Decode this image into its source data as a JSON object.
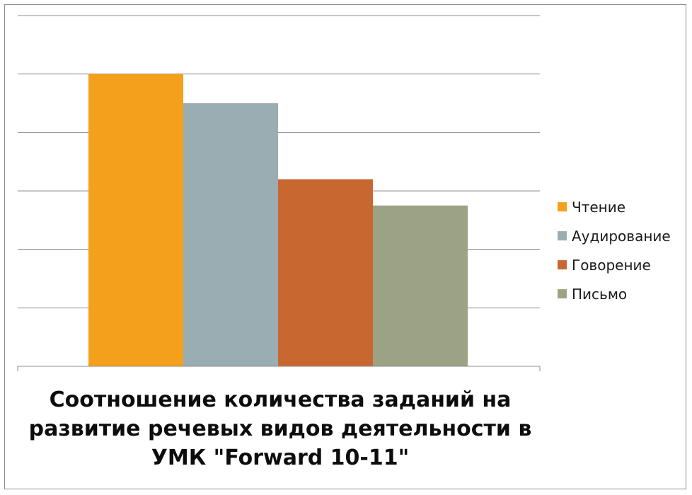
{
  "chart_data": {
    "type": "bar",
    "title_lines": [
      "Соотношение количества заданий на",
      "развитие речевых видов деятельности в",
      "УМК \"Forward 10-11\""
    ],
    "series": [
      {
        "name": "Чтение",
        "value": 5,
        "color": "#F5A01D"
      },
      {
        "name": "Аудирование",
        "value": 4.5,
        "color": "#9AADB3"
      },
      {
        "name": "Говорение",
        "value": 3.2,
        "color": "#C96731"
      },
      {
        "name": "Письмо",
        "value": 2.75,
        "color": "#9CA384"
      }
    ],
    "ylim": [
      0,
      6
    ],
    "grid": true,
    "legend_position": "right"
  }
}
